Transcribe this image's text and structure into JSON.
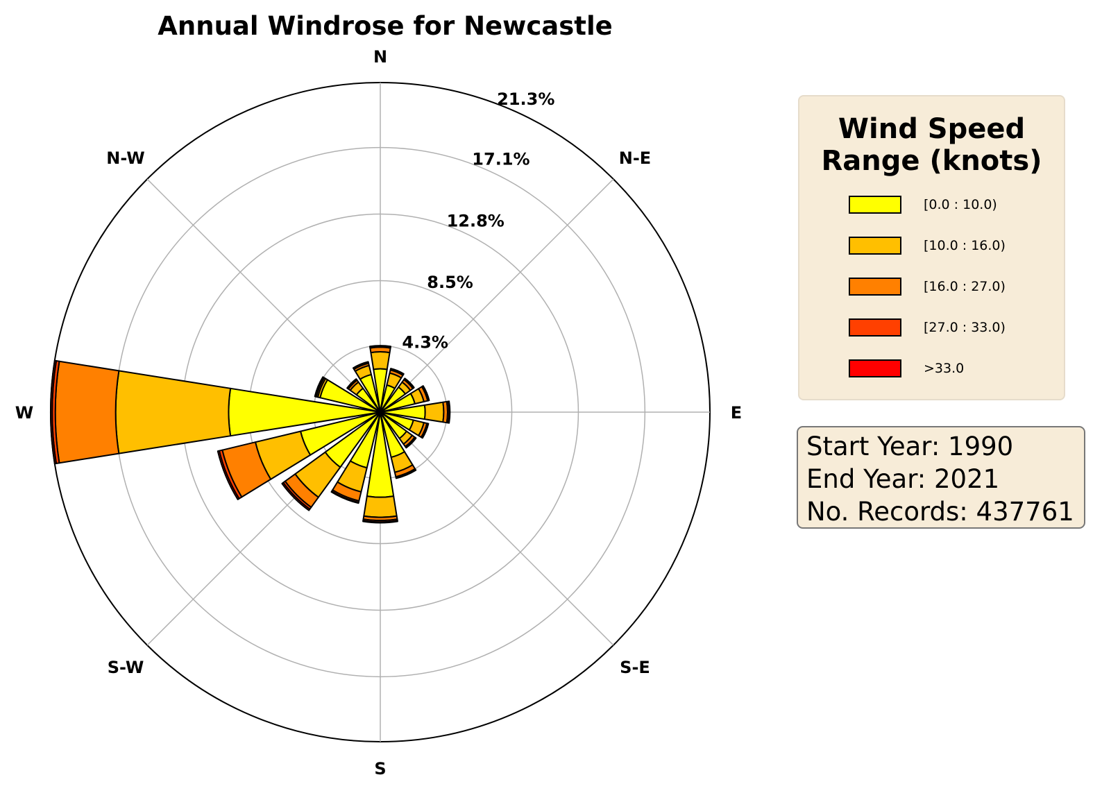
{
  "chart_data": {
    "type": "windrose",
    "title": "Annual Windrose for Newcastle",
    "compass_labels": [
      "N",
      "N-E",
      "E",
      "S-E",
      "S",
      "S-W",
      "W",
      "N-W"
    ],
    "radial_ticks": [
      "4.3%",
      "8.5%",
      "12.8%",
      "17.1%",
      "21.3%"
    ],
    "radial_tick_values": [
      4.3,
      8.5,
      12.8,
      17.1,
      21.3
    ],
    "rmax": 21.3,
    "grid": true,
    "legend_position": "right",
    "speed_bins": [
      {
        "label": "[0.0 : 10.0)",
        "color": "#ffff00"
      },
      {
        "label": "[10.0 : 16.0)",
        "color": "#ffbf00"
      },
      {
        "label": "[16.0 : 27.0)",
        "color": "#ff8000"
      },
      {
        "label": "[27.0 : 33.0)",
        "color": "#ff4000"
      },
      {
        "label": ">33.0",
        "color": "#ff0000"
      }
    ],
    "directions": [
      0,
      22.5,
      45,
      67.5,
      90,
      112.5,
      135,
      157.5,
      180,
      202.5,
      225,
      247.5,
      270,
      292.5,
      315,
      337.5
    ],
    "cumulative": [
      [
        2.8,
        3.9,
        4.2,
        4.25,
        4.3
      ],
      [
        1.8,
        2.6,
        2.8,
        2.85,
        2.9
      ],
      [
        2.0,
        2.4,
        2.6,
        2.65,
        2.7
      ],
      [
        2.3,
        2.9,
        3.15,
        3.2,
        3.25
      ],
      [
        2.9,
        4.1,
        4.35,
        4.45,
        4.5
      ],
      [
        2.2,
        2.9,
        3.1,
        3.15,
        3.2
      ],
      [
        2.1,
        2.55,
        2.75,
        2.8,
        2.85
      ],
      [
        3.0,
        4.0,
        4.3,
        4.35,
        4.4
      ],
      [
        5.5,
        6.8,
        7.0,
        7.1,
        7.15
      ],
      [
        3.7,
        5.3,
        5.9,
        6.0,
        6.05
      ],
      [
        4.4,
        6.8,
        7.6,
        7.75,
        7.85
      ],
      [
        5.3,
        8.3,
        10.5,
        10.7,
        10.8
      ],
      [
        9.8,
        17.1,
        21.0,
        21.2,
        21.3
      ],
      [
        4.0,
        4.15,
        4.25,
        4.3,
        4.35
      ],
      [
        1.9,
        2.4,
        2.55,
        2.6,
        2.65
      ],
      [
        2.5,
        3.1,
        3.25,
        3.3,
        3.35
      ]
    ]
  },
  "legend": {
    "title_line1": "Wind Speed",
    "title_line2": "Range (knots)",
    "items": [
      {
        "label": "[0.0 : 10.0)",
        "color": "#ffff00"
      },
      {
        "label": "[10.0 : 16.0)",
        "color": "#ffbf00"
      },
      {
        "label": "[16.0 : 27.0)",
        "color": "#ff8000"
      },
      {
        "label": "[27.0 : 33.0)",
        "color": "#ff4000"
      },
      {
        "label": ">33.0",
        "color": "#ff0000"
      }
    ]
  },
  "info": {
    "start_year": "Start Year: 1990",
    "end_year": "End Year: 2021",
    "records": "No. Records: 437761"
  }
}
